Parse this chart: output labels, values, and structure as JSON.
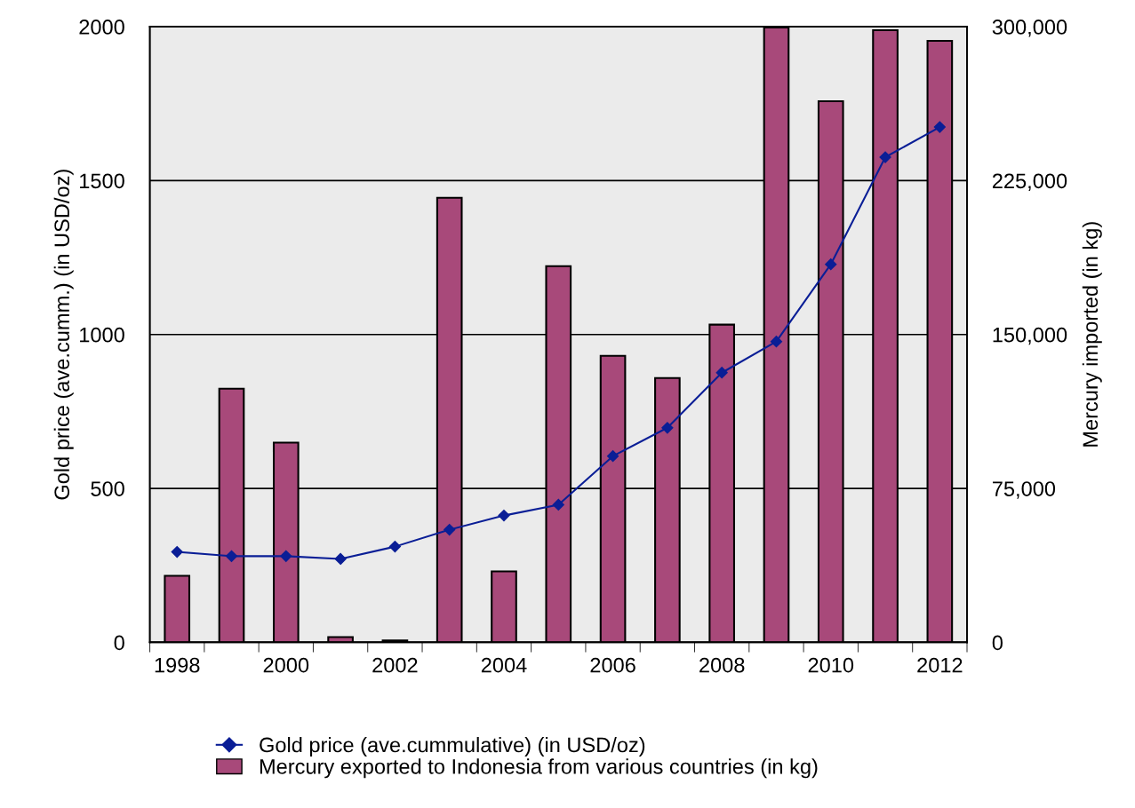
{
  "chart_data": {
    "type": "bar",
    "categories": [
      "1998",
      null,
      "2000",
      null,
      "2002",
      null,
      "2004",
      null,
      "2006",
      null,
      "2008",
      null,
      "2010",
      null,
      "2012"
    ],
    "ylabel": "Gold price (ave.cumm.) (in USD/oz)",
    "y2label": "Mercury imported (in kg)",
    "ylim": [
      0,
      2000
    ],
    "yticks": [
      0,
      500,
      1000,
      1500,
      2000
    ],
    "y2lim": [
      0,
      300000
    ],
    "y2ticks": [
      {
        "value": 0,
        "label": "0"
      },
      {
        "value": 75000,
        "label": "75,000"
      },
      {
        "value": 150000,
        "label": "150,000"
      },
      {
        "value": 225000,
        "label": "225,000"
      },
      {
        "value": 300000,
        "label": "300,000"
      }
    ],
    "grid": "y",
    "legend": "bottom",
    "marker": "diamond",
    "series": [
      {
        "name": "Gold price (ave.cummulative) (in USD/oz)",
        "type": "line",
        "color": "#0a1e96",
        "values": [
          294,
          280,
          280,
          271,
          311,
          366,
          412,
          447,
          605,
          697,
          876,
          977,
          1228,
          1576,
          1674
        ]
      },
      {
        "name": "Mercury exported to Indonesia from various countries (in kg)",
        "axis": "y2",
        "color": "#a8497a",
        "values": [
          32400,
          123600,
          97300,
          2600,
          900,
          216600,
          34600,
          183300,
          139600,
          128800,
          154800,
          299600,
          263700,
          298300,
          293100
        ]
      }
    ]
  }
}
